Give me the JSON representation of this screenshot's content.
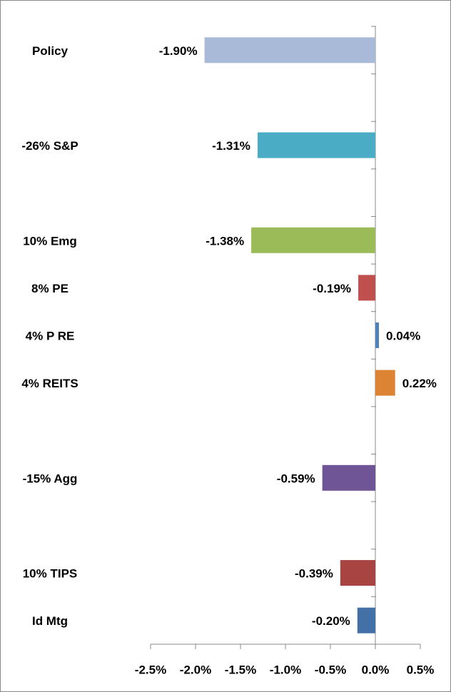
{
  "chart_data": {
    "type": "hbar",
    "categories": [
      "Policy",
      null,
      "-26% S&P",
      null,
      "10% Emg",
      "8% PE",
      "4% P RE",
      "4% REITS",
      null,
      "-15% Agg",
      null,
      "10% TIPS",
      "Id Mtg"
    ],
    "values": [
      -1.9,
      null,
      -1.31,
      null,
      -1.38,
      -0.19,
      0.04,
      0.22,
      null,
      -0.59,
      null,
      -0.39,
      -0.2
    ],
    "value_labels": [
      "-1.90%",
      null,
      "-1.31%",
      null,
      "-1.38%",
      "-0.19%",
      "0.04%",
      "0.22%",
      null,
      "-0.59%",
      null,
      "-0.39%",
      "-0.20%"
    ],
    "colors": [
      "#a9b9d8",
      null,
      "#4bacc6",
      null,
      "#9bbb59",
      "#c0504d",
      "#4f81bd",
      "#dd8434",
      null,
      "#6f5595",
      null,
      "#a84442",
      "#4470a8"
    ],
    "xlim": [
      -2.5,
      0.5
    ],
    "xticks": [
      {
        "value": -2.5,
        "label": "-2.5%"
      },
      {
        "value": -2.0,
        "label": "-2.0%"
      },
      {
        "value": -1.5,
        "label": "-1.5%"
      },
      {
        "value": -1.0,
        "label": "-1.0%"
      },
      {
        "value": -0.5,
        "label": "-0.5%"
      },
      {
        "value": 0.0,
        "label": "0.0%"
      },
      {
        "value": 0.5,
        "label": "0.5%"
      }
    ]
  }
}
